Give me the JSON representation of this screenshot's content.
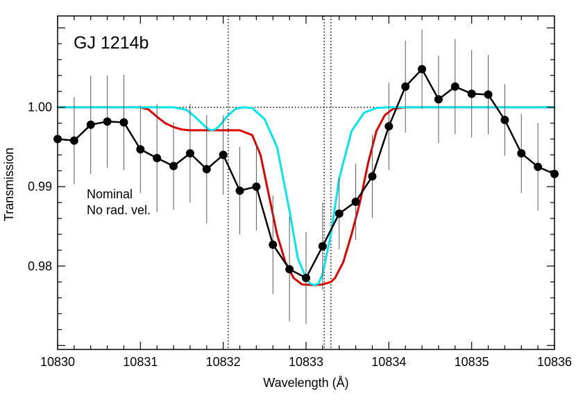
{
  "chart_data": {
    "type": "line",
    "title": "GJ 1214b",
    "xlabel": "Wavelength (Å)",
    "ylabel": "Transmission",
    "xlim": [
      10830,
      10836
    ],
    "ylim": [
      0.9695,
      1.0115
    ],
    "x_ticks": [
      10830,
      10831,
      10832,
      10833,
      10834,
      10835,
      10836
    ],
    "y_ticks": [
      0.98,
      0.99,
      1.0
    ],
    "y_tick_labels": [
      "0.98",
      "0.99",
      "1.00"
    ],
    "grid": false,
    "reference_lines": {
      "horizontal": 1.0,
      "vertical": [
        10832.06,
        10833.22,
        10833.3
      ]
    },
    "legend": {
      "placement": "left",
      "entries": [
        {
          "label": "Nominal",
          "color": "#e00000"
        },
        {
          "label": "No rad. vel.",
          "color": "#00e8ee"
        }
      ]
    },
    "series": [
      {
        "kind": "data",
        "color": "#000000",
        "x": [
          10830.0,
          10830.2,
          10830.4,
          10830.6,
          10830.8,
          10831.0,
          10831.2,
          10831.4,
          10831.6,
          10831.8,
          10832.0,
          10832.2,
          10832.4,
          10832.6,
          10832.8,
          10833.0,
          10833.2,
          10833.4,
          10833.6,
          10833.8,
          10834.0,
          10834.2,
          10834.4,
          10834.6,
          10834.8,
          10835.0,
          10835.2,
          10835.4,
          10835.6,
          10835.8,
          10836.0
        ],
        "y": [
          0.996,
          0.9958,
          0.9978,
          0.9982,
          0.9981,
          0.9947,
          0.9936,
          0.9926,
          0.9942,
          0.9922,
          0.994,
          0.9895,
          0.99,
          0.9827,
          0.9796,
          0.9785,
          0.9825,
          0.9866,
          0.9881,
          0.9913,
          0.9976,
          1.0026,
          1.0048,
          1.001,
          1.0026,
          1.0017,
          1.0016,
          0.9984,
          0.9942,
          0.9925,
          0.9916
        ],
        "err": [
          0.0055,
          0.0055,
          0.0062,
          0.0058,
          0.006,
          0.0055,
          0.0068,
          0.0055,
          0.0062,
          0.0068,
          0.005,
          0.0055,
          0.0055,
          0.0062,
          0.0066,
          0.0058,
          0.0055,
          0.0045,
          0.0048,
          0.0052,
          0.0055,
          0.0058,
          0.005,
          0.0055,
          0.006,
          0.0055,
          0.005,
          0.0045,
          0.005,
          0.0055,
          0.0055
        ]
      },
      {
        "name": "Nominal",
        "kind": "model",
        "color": "#e00000",
        "x": [
          10830.0,
          10831.0,
          10831.1,
          10831.2,
          10831.3,
          10831.4,
          10831.5,
          10831.6,
          10831.8,
          10832.0,
          10832.2,
          10832.35,
          10832.45,
          10832.55,
          10832.65,
          10832.75,
          10832.85,
          10832.95,
          10833.1,
          10833.2,
          10833.3,
          10833.35,
          10833.45,
          10833.55,
          10833.65,
          10833.75,
          10833.85,
          10833.95,
          10834.05,
          10834.2,
          10836.0
        ],
        "y": [
          1.0,
          1.0,
          0.9997,
          0.9988,
          0.998,
          0.9975,
          0.9972,
          0.9971,
          0.9971,
          0.9971,
          0.9971,
          0.9965,
          0.994,
          0.989,
          0.984,
          0.9805,
          0.9785,
          0.9777,
          0.9776,
          0.9777,
          0.978,
          0.9785,
          0.9805,
          0.984,
          0.988,
          0.993,
          0.997,
          0.999,
          0.9998,
          1.0,
          1.0
        ]
      },
      {
        "name": "No rad. vel.",
        "kind": "model",
        "color": "#00e8ee",
        "x": [
          10830.0,
          10831.4,
          10831.55,
          10831.65,
          10831.75,
          10831.8,
          10831.85,
          10831.9,
          10831.95,
          10832.05,
          10832.15,
          10832.25,
          10832.35,
          10832.5,
          10832.65,
          10832.8,
          10832.9,
          10833.0,
          10833.05,
          10833.1,
          10833.15,
          10833.2,
          10833.3,
          10833.4,
          10833.55,
          10833.7,
          10833.85,
          10834.0,
          10836.0
        ],
        "y": [
          1.0,
          1.0,
          0.9997,
          0.9989,
          0.9979,
          0.9974,
          0.9971,
          0.9972,
          0.9976,
          0.9989,
          0.9998,
          1.0,
          0.9999,
          0.9985,
          0.995,
          0.987,
          0.981,
          0.9785,
          0.9778,
          0.9776,
          0.9778,
          0.979,
          0.984,
          0.991,
          0.997,
          0.9993,
          0.9999,
          1.0,
          1.0
        ]
      }
    ]
  }
}
